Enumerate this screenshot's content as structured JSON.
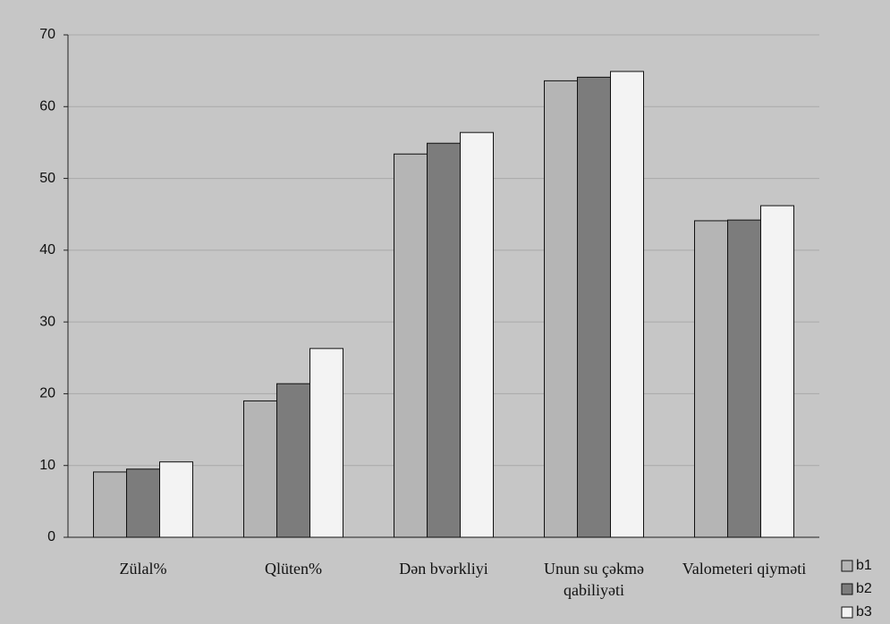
{
  "chart_data": {
    "type": "bar",
    "categories": [
      "Zülal%",
      "Qlüten%",
      "Dən bvərkliyi",
      "Unun su çəkmə qabiliyəti",
      "Valometeri qiyməti"
    ],
    "series": [
      {
        "name": "b1",
        "color": "#b5b5b5",
        "values": [
          9.1,
          19.0,
          53.4,
          63.6,
          44.1
        ]
      },
      {
        "name": "b2",
        "color": "#7c7c7c",
        "values": [
          9.5,
          21.4,
          54.9,
          64.1,
          44.2
        ]
      },
      {
        "name": "b3",
        "color": "#f3f3f3",
        "values": [
          10.5,
          26.3,
          56.4,
          64.9,
          46.2
        ]
      }
    ],
    "ylim": [
      0,
      70
    ],
    "yticks": [
      0,
      10,
      20,
      30,
      40,
      50,
      60,
      70
    ],
    "grid": true,
    "legend": "bottom-right"
  }
}
